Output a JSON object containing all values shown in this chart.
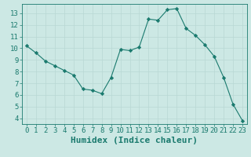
{
  "x": [
    0,
    1,
    2,
    3,
    4,
    5,
    6,
    7,
    8,
    9,
    10,
    11,
    12,
    13,
    14,
    15,
    16,
    17,
    18,
    19,
    20,
    21,
    22,
    23
  ],
  "y": [
    10.2,
    9.6,
    8.9,
    8.5,
    8.1,
    7.7,
    6.5,
    6.4,
    6.1,
    7.5,
    9.9,
    9.8,
    10.1,
    12.5,
    12.4,
    13.3,
    13.4,
    11.7,
    11.1,
    10.3,
    9.3,
    7.5,
    5.2,
    3.8
  ],
  "line_color": "#1a7a6e",
  "marker": "D",
  "marker_size": 2.2,
  "bg_color": "#cce8e4",
  "grid_color": "#b8d8d4",
  "tick_color": "#1a7a6e",
  "xlabel": "Humidex (Indice chaleur)",
  "xlabel_color": "#1a7a6e",
  "ylim": [
    3.5,
    13.8
  ],
  "xlim": [
    -0.5,
    23.5
  ],
  "yticks": [
    4,
    5,
    6,
    7,
    8,
    9,
    10,
    11,
    12,
    13
  ],
  "xticks": [
    0,
    1,
    2,
    3,
    4,
    5,
    6,
    7,
    8,
    9,
    10,
    11,
    12,
    13,
    14,
    15,
    16,
    17,
    18,
    19,
    20,
    21,
    22,
    23
  ],
  "tick_label_fontsize": 6.5,
  "xlabel_fontsize": 8
}
